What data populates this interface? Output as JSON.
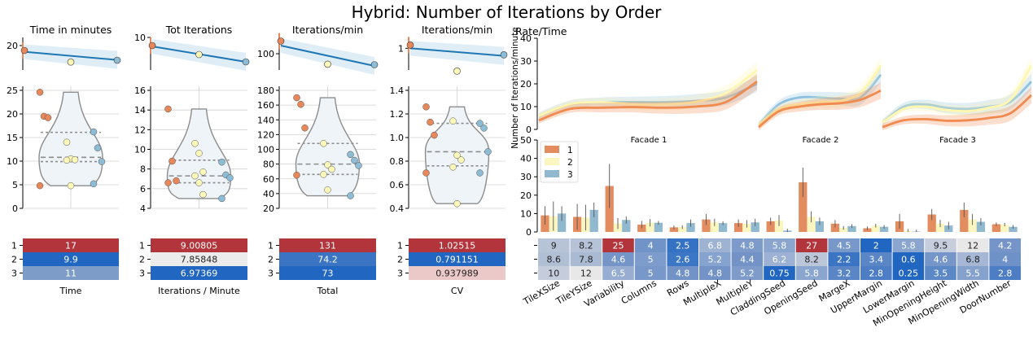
{
  "title": "Hybrid: Number of Iterations by Order",
  "colors": {
    "order1": "#e8875a",
    "order2": "#fdf8b8",
    "order3": "#8dbcd6",
    "line": "#1f77b4",
    "violin_fill": "#eef4f8",
    "violin_edge": "#8c8c8c",
    "table_red": "#b2353c",
    "table_blue": "#2166c0",
    "table_white": "#f2f2f2"
  },
  "chart_data": [
    {
      "type": "scatter",
      "panel": "trend",
      "title": "Time in minutes",
      "x": [
        1,
        2,
        3
      ],
      "y": [
        17,
        9.9,
        11
      ],
      "regression": [
        16.2,
        13.7,
        11.2
      ],
      "ylim": [
        5,
        25
      ],
      "yticks": [
        "20"
      ]
    },
    {
      "type": "scatter",
      "panel": "trend",
      "title": "Tot Iterations",
      "x": [
        1,
        2,
        3
      ],
      "y": [
        9.0,
        7.9,
        7.0
      ],
      "regression": [
        8.9,
        7.9,
        7.0
      ],
      "ylim": [
        6,
        10
      ],
      "yticks": [
        "10"
      ]
    },
    {
      "type": "scatter",
      "panel": "trend",
      "title": "Iterations/min",
      "x": [
        1,
        2,
        3
      ],
      "y": [
        131,
        74.2,
        73
      ],
      "regression": [
        120,
        95,
        70
      ],
      "ylim": [
        60,
        140
      ],
      "yticks": [
        "100"
      ]
    },
    {
      "type": "scatter",
      "panel": "trend",
      "title": "Iterations/min",
      "x": [
        1,
        2,
        3
      ],
      "y": [
        1.03,
        0.79,
        0.94
      ],
      "regression": [
        1.0,
        0.96,
        0.93
      ],
      "ylim": [
        0.8,
        1.1
      ],
      "yticks": [
        "1"
      ]
    },
    {
      "type": "violin",
      "ylim": [
        0,
        25
      ],
      "yticks": [
        "0",
        "5",
        "10",
        "15",
        "20",
        "25"
      ],
      "points": {
        "1": [
          24.6,
          19.5,
          19.2,
          4.8
        ],
        "2": [
          14,
          10.5,
          10.3,
          10.2,
          4.8
        ],
        "3": [
          16.2,
          12.8,
          9.9,
          5.2
        ]
      },
      "quartiles": [
        9.9,
        10.8,
        16.1
      ]
    },
    {
      "type": "violin",
      "ylim": [
        4,
        16
      ],
      "yticks": [
        "4",
        "6",
        "8",
        "10",
        "12",
        "14",
        "16"
      ],
      "points": {
        "1": [
          14.1,
          8.8,
          6.8,
          6.6
        ],
        "2": [
          10.6,
          9.6,
          7.7,
          7.3,
          6.6,
          5.4
        ],
        "3": [
          8.7,
          7.4,
          7.1,
          5.0
        ]
      },
      "quartiles": [
        6.6,
        7.3,
        8.9
      ]
    },
    {
      "type": "violin",
      "ylim": [
        20,
        180
      ],
      "yticks": [
        "20",
        "40",
        "60",
        "80",
        "100",
        "120",
        "140",
        "160",
        "180"
      ],
      "points": {
        "1": [
          170,
          161,
          129,
          65
        ],
        "2": [
          108,
          79,
          73,
          66,
          45
        ],
        "3": [
          93,
          85,
          78,
          37
        ]
      },
      "quartiles": [
        66,
        80,
        108
      ]
    },
    {
      "type": "violin",
      "ylim": [
        0.4,
        1.4
      ],
      "yticks": [
        "0.4",
        "0.6",
        "0.8",
        "1.0",
        "1.2",
        "1.4"
      ],
      "points": {
        "1": [
          1.26,
          1.13,
          1.02,
          0.7
        ],
        "2": [
          1.14,
          0.85,
          0.81,
          0.75,
          0.44
        ],
        "3": [
          1.12,
          1.08,
          0.88,
          0.7
        ]
      },
      "quartiles": [
        0.76,
        0.88,
        1.12
      ]
    },
    {
      "type": "table",
      "label": "Time",
      "rows": [
        "1",
        "2",
        "3"
      ],
      "values": [
        "17",
        "9.9",
        "11"
      ],
      "colors": [
        "#b2353c",
        "#2166c0",
        "#7e9cc8"
      ]
    },
    {
      "type": "table",
      "label": "Iterations / Minute",
      "rows": [
        "1",
        "2",
        "3"
      ],
      "values": [
        "9.00805",
        "7.85848",
        "6.97369"
      ],
      "colors": [
        "#b2353c",
        "#ececec",
        "#2166c0"
      ]
    },
    {
      "type": "table",
      "label": "Total",
      "rows": [
        "1",
        "2",
        "3"
      ],
      "values": [
        "131",
        "74.2",
        "73"
      ],
      "colors": [
        "#b2353c",
        "#3a74c3",
        "#2166c0"
      ]
    },
    {
      "type": "table",
      "label": "CV",
      "rows": [
        "1",
        "2",
        "3"
      ],
      "values": [
        "1.02515",
        "0.791151",
        "0.937989"
      ],
      "colors": [
        "#b2353c",
        "#2166c0",
        "#ebc9c9"
      ]
    },
    {
      "type": "line",
      "title": "Rate/Time",
      "ylabel": "Number of Iterations/minute",
      "ylim": [
        0,
        40
      ],
      "yticks": [
        "0",
        "10",
        "20",
        "30",
        "40"
      ],
      "facets": [
        "Facade 1",
        "Facade 2",
        "Facade 3"
      ],
      "series": [
        {
          "order": "1",
          "facets": [
            [
              4,
              9,
              9.5,
              9.8,
              9.5,
              10,
              12,
              21
            ],
            [
              1,
              8,
              10,
              11,
              11.5,
              13,
              17
            ],
            [
              1,
              4,
              4.5,
              3.8,
              4,
              5,
              7,
              15
            ]
          ]
        },
        {
          "order": "2",
          "facets": [
            [
              6,
              11,
              12,
              11,
              11,
              12,
              16,
              26
            ],
            [
              2,
              9,
              11,
              12,
              12.5,
              16,
              28
            ],
            [
              3,
              9,
              10,
              8.5,
              8,
              9.5,
              13,
              28
            ]
          ]
        },
        {
          "order": "3",
          "facets": [
            [
              6,
              11,
              12,
              12,
              12,
              12.5,
              14,
              20
            ],
            [
              2,
              11,
              14,
              14,
              13.5,
              14,
              24
            ],
            [
              3,
              10,
              11,
              9.5,
              9,
              10,
              12,
              21
            ]
          ]
        }
      ]
    },
    {
      "type": "bar",
      "ylim": [
        0,
        50
      ],
      "yticks": [
        "0",
        "10",
        "20",
        "30",
        "40",
        "50"
      ],
      "legend": [
        "1",
        "2",
        "3"
      ],
      "legend_position": "top-left",
      "categories": [
        "TileXSize",
        "TileYSize",
        "Variability",
        "Columns",
        "Rows",
        "MultipleX",
        "MultipleY",
        "CladdingSeed",
        "OpeningSeed",
        "MargeX",
        "UpperMargin",
        "LowerMargin",
        "MinOpeningHeight",
        "MinOpeningWidth",
        "DoorNumber"
      ],
      "series": [
        {
          "name": "1",
          "values": [
            9,
            8.2,
            25,
            4,
            2.5,
            6.8,
            4.8,
            5.8,
            27,
            4.5,
            2,
            5.8,
            9.5,
            12,
            4.2
          ],
          "labels": [
            "9",
            "8.2",
            "25",
            "4",
            "2.5",
            "6.8",
            "4.8",
            "5.8",
            "27",
            "4.5",
            "2",
            "5.8",
            "9.5",
            "12",
            "4.2"
          ],
          "colors": [
            "#b7c3d7",
            "#b6c2d6",
            "#b2353c",
            "#7094c7",
            "#3672c4",
            "#9eb2d2",
            "#7c9bca",
            "#8aa5ce",
            "#b2353c",
            "#7898c9",
            "#2166c0",
            "#8aa5ce",
            "#c6cddc",
            "#e8e8e8",
            "#7595c8"
          ]
        },
        {
          "name": "2",
          "values": [
            8.6,
            7.8,
            4.6,
            5,
            2.6,
            5.2,
            4.4,
            6.2,
            8.2,
            2.2,
            3.4,
            0.6,
            4.6,
            6.8,
            4
          ],
          "labels": [
            "8.6",
            "7.8",
            "4.6",
            "5",
            "2.6",
            "5.2",
            "4.4",
            "6.2",
            "8.2",
            "2.2",
            "3.4",
            "0.6",
            "4.6",
            "6.8",
            "4"
          ],
          "colors": [
            "#b1bfd5",
            "#abbad3",
            "#7595c8",
            "#7d9bcb",
            "#3c77c5",
            "#86a2ce",
            "#7393c7",
            "#9cb1d3",
            "#bbc6d9",
            "#3a74c3",
            "#5a86c6",
            "#2166c0",
            "#7696c9",
            "#a5b7d4",
            "#6e91c7"
          ]
        },
        {
          "name": "3",
          "values": [
            10,
            12,
            6.5,
            5,
            4.8,
            4.8,
            5.2,
            0.75,
            5.8,
            3.2,
            2.8,
            0.25,
            3.5,
            5.5,
            2.8
          ],
          "labels": [
            "10",
            "12",
            "6.5",
            "5",
            "4.8",
            "4.8",
            "5.2",
            "0.75",
            "5.8",
            "3.2",
            "2.8",
            "0.25",
            "3.5",
            "5.5",
            "2.8"
          ],
          "colors": [
            "#c5cddc",
            "#e8e8e8",
            "#97aed2",
            "#7898c9",
            "#7393c7",
            "#7393c7",
            "#7e9bca",
            "#2166c0",
            "#8aa5ce",
            "#5a86c6",
            "#4d7ec5",
            "#2166c0",
            "#5d88c6",
            "#85a2cd",
            "#4d7ec5"
          ]
        }
      ],
      "errors": [
        [
          5,
          8,
          4
        ],
        [
          7,
          7,
          4
        ],
        [
          12,
          3,
          2
        ],
        [
          2,
          2,
          1
        ],
        [
          1,
          1,
          2
        ],
        [
          3,
          2,
          1
        ],
        [
          2,
          2,
          2
        ],
        [
          2,
          3,
          1
        ],
        [
          8,
          3,
          2
        ],
        [
          2,
          1,
          1
        ],
        [
          1,
          1,
          1
        ],
        [
          4,
          1,
          1
        ],
        [
          3,
          2,
          2
        ],
        [
          4,
          3,
          2
        ],
        [
          1,
          1,
          1
        ]
      ]
    }
  ]
}
